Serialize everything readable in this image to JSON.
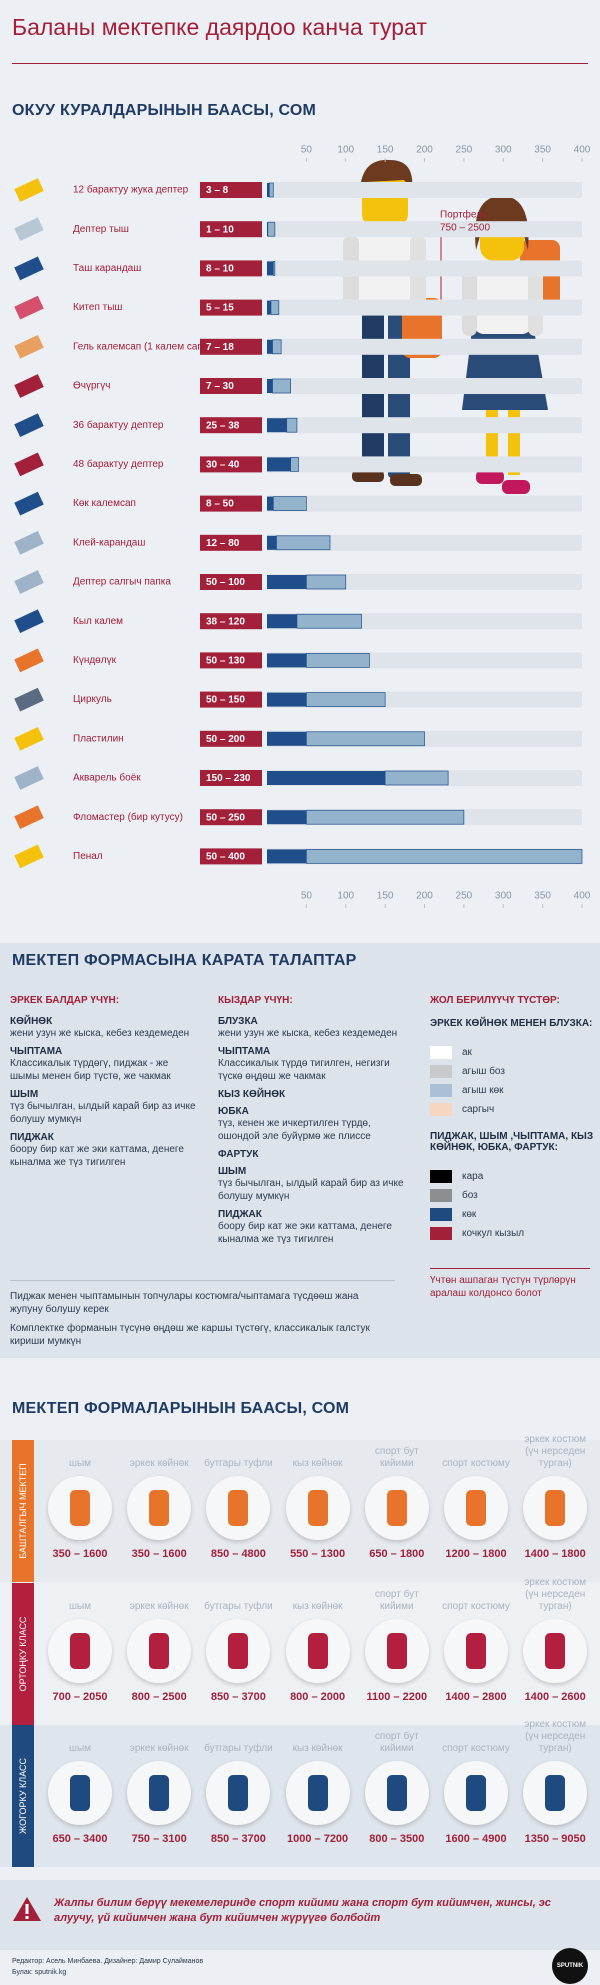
{
  "title": "Баланы мектепке даярдоо канча турат",
  "chart_data": {
    "type": "range_bar",
    "title": "ОКУУ КУРАЛДАРЫНЫН БААСЫ, СОМ",
    "categories": [
      "12 барактуу жука дептер",
      "Дептер тыш",
      "Таш карандаш",
      "Китеп тыш",
      "Гель калемсап (1 калем сап)",
      "Өчүргүч",
      "36 барактуу дептер",
      "48 барактуу дептер",
      "Көк калемсап",
      "Клей-карандаш",
      "Дептер салгыч папка",
      "Кыл калем",
      "Күндөлүк",
      "Циркуль",
      "Пластилин",
      "Акварель боёк",
      "Фломастер (бир кутусу)",
      "Пенал"
    ],
    "low": [
      3,
      1,
      8,
      5,
      7,
      7,
      25,
      30,
      8,
      12,
      50,
      38,
      50,
      50,
      50,
      150,
      50,
      50
    ],
    "high": [
      8,
      10,
      10,
      15,
      18,
      30,
      38,
      40,
      50,
      80,
      100,
      120,
      130,
      150,
      200,
      230,
      250,
      400
    ],
    "value_labels": [
      "3 – 8",
      "1 – 10",
      "8 – 10",
      "5 – 15",
      "7 – 18",
      "7 – 30",
      "25 – 38",
      "30 – 40",
      "8 – 50",
      "12 – 80",
      "50 – 100",
      "38 – 120",
      "50 – 130",
      "50 – 150",
      "50 – 200",
      "150 – 230",
      "50 – 250",
      "50 – 400"
    ],
    "low_color": "#1f4e8a",
    "high_color": "#93b2cc",
    "label_color": "#a3203a",
    "xlim": [
      0,
      400
    ],
    "xticks": [
      50,
      100,
      150,
      200,
      250,
      300,
      350,
      400
    ],
    "annotations": [
      "Портфель",
      "750 – 2500"
    ]
  },
  "requirements": {
    "title": "МЕКТЕП ФОРМАСЫНА КАРАТА ТАЛАПТАР",
    "columns": [
      {
        "heading": "ЭРКЕК БАЛДАР ҮЧҮН:",
        "items": [
          {
            "name": "КӨЙНӨК",
            "text": "жени узун же кыска, кебез кездемеден"
          },
          {
            "name": "ЧЫПТАМА",
            "text": "Классикалык түрдөгү, пиджак - же шымы менен бир түстө, же чакмак"
          },
          {
            "name": "ШЫМ",
            "text": "түз бычылган, ылдый карай бир аз ичке болушу мумкүн"
          },
          {
            "name": "ПИДЖАК",
            "text": "боору бир кат же эки каттама, денеге кыналма же түз тигилген"
          }
        ]
      },
      {
        "heading": "КЫЗДАР ҮЧҮН:",
        "items": [
          {
            "name": "БЛУЗКА",
            "text": "жени узун же кыска, кебез кездемеден"
          },
          {
            "name": "ЧЫПТАМА",
            "text": "Классикалык түрдө тигилген, негизги түскө өңдөш же чакмак"
          },
          {
            "name": "КЫЗ КӨЙНӨК"
          },
          {
            "name": "ЮБКА",
            "text": "түз, кенен же ичкертилген түрдө, ошондой эле буйүрмө же плиссе"
          },
          {
            "name": "ФАРТУК"
          },
          {
            "name": "ШЫМ",
            "text": "түз бычылган, ылдый карай бир аз ичке болушу мумкүн"
          },
          {
            "name": "ПИДЖАК",
            "text": "боору бир кат же эки каттама, денеге кыналма же түз тигилген"
          }
        ]
      }
    ],
    "colors": {
      "heading": "ЖОЛ БЕРИЛҮҮЧҮ ТҮСТӨР:",
      "groups": [
        {
          "heading": "ЭРКЕК КӨЙНӨК МЕНЕН БЛУЗКА:",
          "swatches": [
            {
              "label": "ак",
              "color": "#ffffff"
            },
            {
              "label": "агыш боз",
              "color": "#c9cacc"
            },
            {
              "label": "агыш көк",
              "color": "#a9c0d6"
            },
            {
              "label": "саргыч",
              "color": "#f6d6c0"
            }
          ]
        },
        {
          "heading": "ПИДЖАК, ШЫМ ,ЧЫПТАМА, КЫЗ КӨЙНӨК, ЮБКА, ФАРТУК:",
          "swatches": [
            {
              "label": "кара",
              "color": "#000000"
            },
            {
              "label": "боз",
              "color": "#8c8e91"
            },
            {
              "label": "көк",
              "color": "#1f4a80"
            },
            {
              "label": "кочкул кызыл",
              "color": "#a3203a"
            }
          ]
        }
      ],
      "note": "Үчтөн ашпаган түстүн түрлөрүн аралаш колдонсо болот"
    },
    "notes": [
      "Пиджак менен чыптамынын топчулары костюмга/чыптамага түсдөөш жана жупуну болушу керек",
      "Комплектке форманын түсүнө өңдөш же каршы түстөгү, классикалык галстук кириши мумкүн"
    ]
  },
  "uniform_prices": {
    "title": "МЕКТЕП ФОРМАЛАРЫНЫН БААСЫ, СОМ",
    "items": [
      "шым",
      "эркек көйнөк",
      "бутгары туфли",
      "кыз көйнөк",
      "спорт бут кийими",
      "спорт костюму",
      "эркек костюм (үч нерседен турган)"
    ],
    "rows": [
      {
        "name": "БАШТАЛГЫЧ МЕКТЕП",
        "color": "#e8732a",
        "prices": [
          "350 – 1600",
          "350 – 1600",
          "850 – 4800",
          "550 – 1300",
          "650 – 1800",
          "1200 – 1800",
          "1400 – 1800"
        ]
      },
      {
        "name": "ОРТОҢКУ КЛАСС",
        "color": "#b3203f",
        "prices": [
          "700 – 2050",
          "800 – 2500",
          "850 – 3700",
          "800 – 2000",
          "1100 – 2200",
          "1400 – 2800",
          "1400 – 2600"
        ]
      },
      {
        "name": "ЖОГОРКУ КЛАСС",
        "color": "#1f4a80",
        "prices": [
          "650 – 3400",
          "750 – 3100",
          "850 – 3700",
          "1000 – 7200",
          "800 – 3500",
          "1600 – 4900",
          "1350 – 9050"
        ]
      }
    ]
  },
  "warning": "Жалпы билим берүү мекемелеринде спорт кийими жана спорт бут кийимчен, жинсы, эс алуучу, үй кийимчен жана бут кийимчен жүрүүгө болбойт",
  "credits": [
    "Редактор: Асель Минбаева. Дизайнер: Дамир Сулайманов",
    "Булак: sputnik.kg"
  ],
  "logo": "SPUTNIK"
}
